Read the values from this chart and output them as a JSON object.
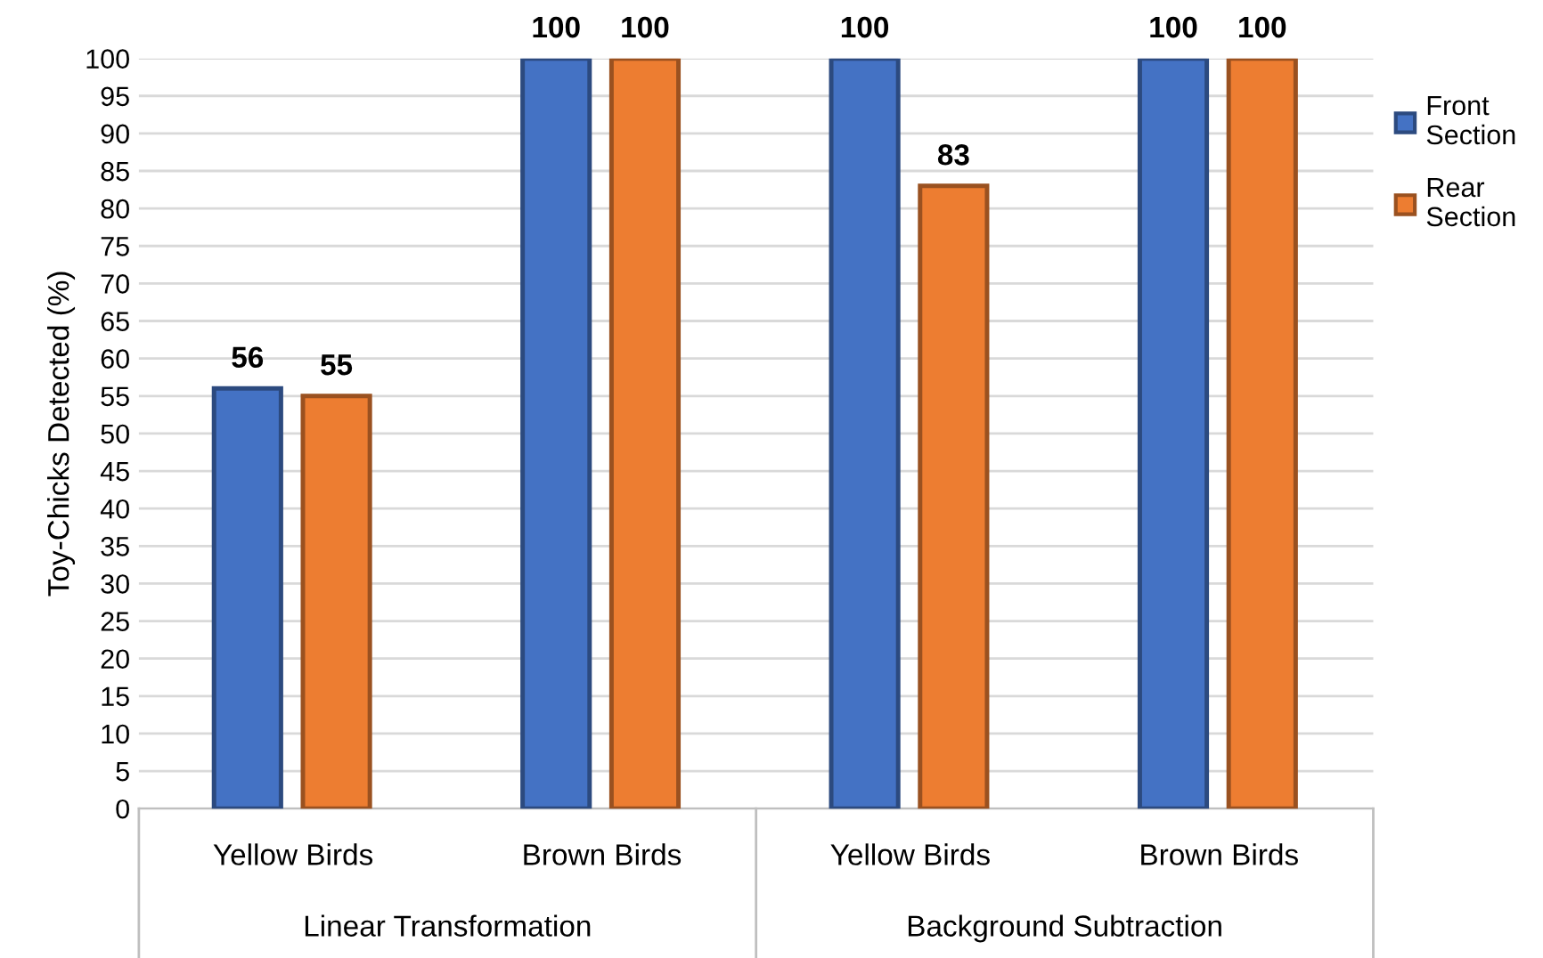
{
  "chart_data": {
    "type": "bar",
    "ylabel": "Toy-Chicks Detected (%)",
    "categories": [
      "Yellow Birds",
      "Brown Birds",
      "Yellow Birds",
      "Brown Birds"
    ],
    "series": [
      {
        "name": "Front Section",
        "color": "#4472c4",
        "values": [
          56,
          100,
          100,
          100
        ]
      },
      {
        "name": "Rear Section",
        "color": "#ed7d31",
        "values": [
          55,
          100,
          83,
          100
        ]
      }
    ],
    "annotations": [
      "Linear Transformation",
      "Background Subtraction"
    ],
    "ylim": [
      0,
      100
    ],
    "yticks": [
      0,
      5,
      10,
      15,
      20,
      25,
      30,
      35,
      40,
      45,
      50,
      55,
      60,
      65,
      70,
      75,
      80,
      85,
      90,
      95,
      100
    ],
    "grid": "y",
    "legend": "right",
    "data_labels": true
  }
}
